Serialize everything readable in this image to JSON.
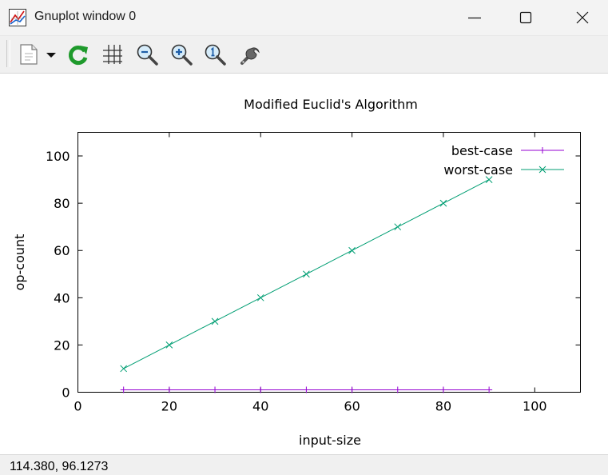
{
  "window": {
    "title": "Gnuplot window 0"
  },
  "toolbar": {
    "items": [
      {
        "name": "copy-clipboard",
        "icon": "clipboard-icon"
      },
      {
        "name": "options-dropdown",
        "icon": "chevron-down-icon"
      },
      {
        "name": "replot",
        "icon": "refresh-icon"
      },
      {
        "name": "grid",
        "icon": "grid-icon"
      },
      {
        "name": "zoom-previous",
        "icon": "zoom-out-icon"
      },
      {
        "name": "zoom-next",
        "icon": "zoom-in-icon"
      },
      {
        "name": "unzoom",
        "icon": "zoom-reset-icon"
      },
      {
        "name": "preferences",
        "icon": "wrench-icon"
      }
    ]
  },
  "colors": {
    "best_case": "#9400d3",
    "worst_case": "#009e73"
  },
  "chart_data": {
    "type": "line",
    "title": "Modified Euclid's Algorithm",
    "xlabel": "input-size",
    "ylabel": "op-count",
    "xlim": [
      0,
      110
    ],
    "ylim": [
      0,
      110
    ],
    "xticks": [
      0,
      20,
      40,
      60,
      80,
      100
    ],
    "yticks": [
      0,
      20,
      40,
      60,
      80,
      100
    ],
    "grid": false,
    "legend": "top-right",
    "x": [
      10,
      20,
      30,
      40,
      50,
      60,
      70,
      80,
      90
    ],
    "series": [
      {
        "name": "best-case",
        "marker": "plus",
        "values": [
          1,
          1,
          1,
          1,
          1,
          1,
          1,
          1,
          1
        ]
      },
      {
        "name": "worst-case",
        "marker": "cross",
        "values": [
          10,
          20,
          30,
          40,
          50,
          60,
          70,
          80,
          90
        ]
      }
    ]
  },
  "status": {
    "coords": "114.380,  96.1273"
  }
}
